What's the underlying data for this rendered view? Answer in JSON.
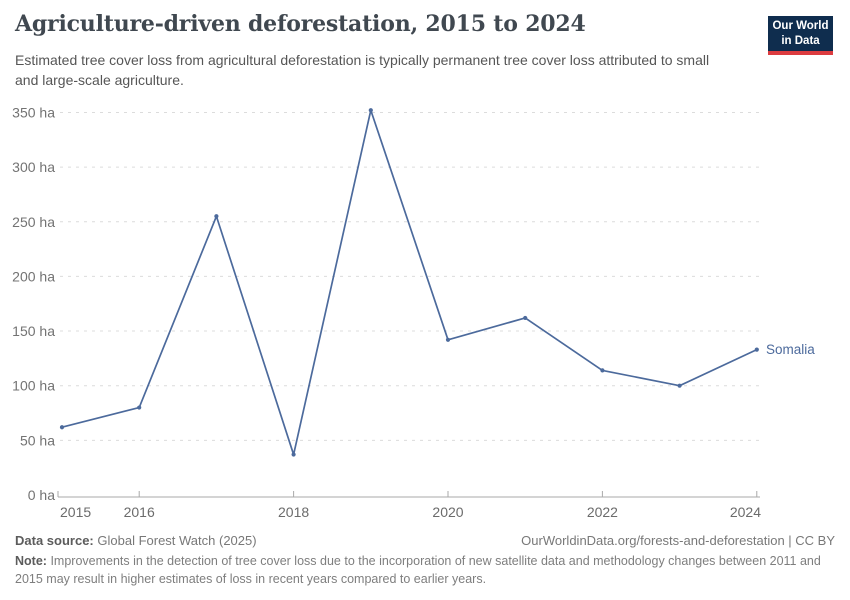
{
  "header": {
    "title": "Agriculture-driven deforestation, 2015 to 2024",
    "subtitle": "Estimated tree cover loss from agricultural deforestation is typically permanent tree cover loss attributed to small and large-scale agriculture.",
    "logo": {
      "line1": "Our World",
      "line2": "in Data",
      "bg_color": "#0f2d4e",
      "accent_color": "#dc3c40"
    }
  },
  "chart_data": {
    "type": "line",
    "title": "Agriculture-driven deforestation, 2015 to 2024",
    "x": [
      2015,
      2016,
      2017,
      2018,
      2019,
      2020,
      2021,
      2022,
      2023,
      2024
    ],
    "series": [
      {
        "name": "Somalia",
        "values": [
          62,
          80,
          255,
          37,
          352,
          142,
          162,
          114,
          100,
          133
        ],
        "color": "#4C6A9C"
      }
    ],
    "unit": "ha",
    "ylabel": "",
    "xlabel": "",
    "ylim": [
      0,
      360
    ],
    "yticks": [
      0,
      50,
      100,
      150,
      200,
      250,
      300,
      350
    ],
    "ytick_suffix": " ha",
    "xtick_labels": [
      2015,
      2016,
      2018,
      2020,
      2022,
      2024
    ],
    "grid": "horizontal-dashed",
    "gridline_color": "#dcdcdc",
    "axis_color": "#a9a9a9",
    "tick_label_color": "#737373",
    "legend_position": "line-end-label"
  },
  "footer": {
    "data_source_label": "Data source:",
    "data_source_value": "Global Forest Watch (2025)",
    "attribution": "OurWorldinData.org/forests-and-deforestation | CC BY",
    "note_label": "Note:",
    "note_text": "Improvements in the detection of tree cover loss due to the incorporation of new satellite data and methodology changes between 2011 and 2015 may result in higher estimates of loss in recent years compared to earlier years."
  }
}
